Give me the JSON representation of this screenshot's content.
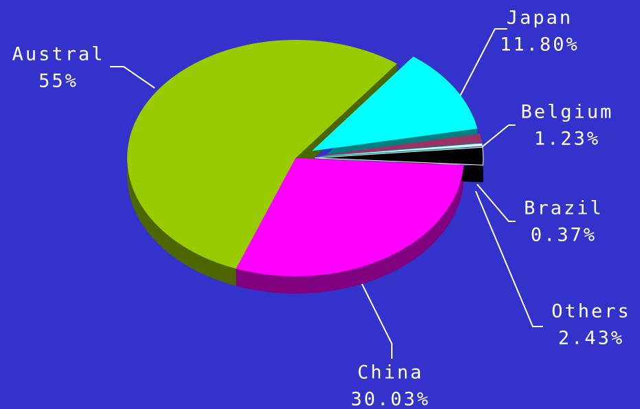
{
  "chart_data": {
    "type": "pie3d",
    "categories": [
      "Austral",
      "China",
      "Others",
      "Brazil",
      "Belgium",
      "Japan"
    ],
    "values": [
      55,
      30.03,
      2.43,
      0.37,
      1.23,
      11.8
    ],
    "value_labels": [
      "55%",
      "30.03%",
      "2.43%",
      "0.37%",
      "1.23%",
      "11.80%"
    ],
    "colors": [
      "#99cc00",
      "#ff00ff",
      "#000000",
      "#ccffff",
      "#993366",
      "#00ffff"
    ],
    "background": "#3333cc"
  }
}
